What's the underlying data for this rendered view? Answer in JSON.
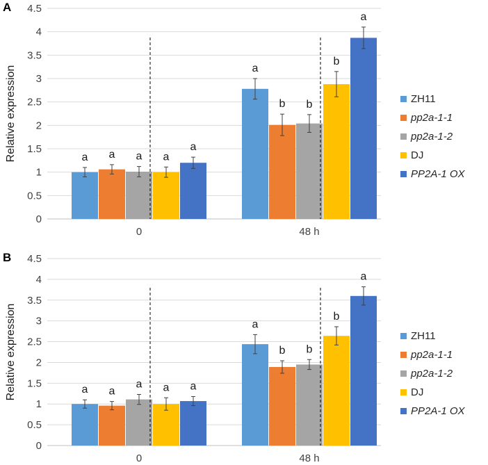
{
  "chart_data": [
    {
      "type": "bar",
      "panel_label": "A",
      "ylabel": "Relative expression",
      "ylim": [
        0,
        4.5
      ],
      "yticks": [
        "0",
        "0.5",
        "1",
        "1.5",
        "2",
        "2.5",
        "3",
        "3.5",
        "4",
        "4.5"
      ],
      "categories": [
        "0",
        "48 h"
      ],
      "series": [
        {
          "name": "ZH11",
          "color": "#5b9bd5",
          "italic": false,
          "values": [
            1.0,
            2.78
          ],
          "errors": [
            0.1,
            0.22
          ],
          "labels": [
            "a",
            "a"
          ]
        },
        {
          "name": "pp2a-1-1",
          "color": "#ed7d31",
          "italic": true,
          "values": [
            1.06,
            2.01
          ],
          "errors": [
            0.1,
            0.23
          ],
          "labels": [
            "a",
            "b"
          ]
        },
        {
          "name": "pp2a-1-2",
          "color": "#a5a5a5",
          "italic": true,
          "values": [
            1.01,
            2.04
          ],
          "errors": [
            0.11,
            0.19
          ],
          "labels": [
            "a",
            "b"
          ]
        },
        {
          "name": "DJ",
          "color": "#ffc000",
          "italic": false,
          "values": [
            1.0,
            2.88
          ],
          "errors": [
            0.11,
            0.27
          ],
          "labels": [
            "a",
            "b"
          ]
        },
        {
          "name": "PP2A-1 OX",
          "color": "#4472c4",
          "italic": true,
          "values": [
            1.2,
            3.87
          ],
          "errors": [
            0.12,
            0.23
          ],
          "labels": [
            "a",
            "a"
          ]
        }
      ]
    },
    {
      "type": "bar",
      "panel_label": "B",
      "ylabel": "Relative expression",
      "ylim": [
        0,
        4.5
      ],
      "yticks": [
        "0",
        "0.5",
        "1",
        "1.5",
        "2",
        "2.5",
        "3",
        "3.5",
        "4",
        "4.5"
      ],
      "categories": [
        "0",
        "48 h"
      ],
      "series": [
        {
          "name": "ZH11",
          "color": "#5b9bd5",
          "italic": false,
          "values": [
            1.0,
            2.44
          ],
          "errors": [
            0.1,
            0.23
          ],
          "labels": [
            "a",
            "a"
          ]
        },
        {
          "name": "pp2a-1-1",
          "color": "#ed7d31",
          "italic": true,
          "values": [
            0.96,
            1.89
          ],
          "errors": [
            0.1,
            0.15
          ],
          "labels": [
            "a",
            "b"
          ]
        },
        {
          "name": "pp2a-1-2",
          "color": "#a5a5a5",
          "italic": true,
          "values": [
            1.11,
            1.95
          ],
          "errors": [
            0.12,
            0.12
          ],
          "labels": [
            "a",
            "b"
          ]
        },
        {
          "name": "DJ",
          "color": "#ffc000",
          "italic": false,
          "values": [
            1.0,
            2.64
          ],
          "errors": [
            0.15,
            0.22
          ],
          "labels": [
            "a",
            "b"
          ]
        },
        {
          "name": "PP2A-1 OX",
          "color": "#4472c4",
          "italic": true,
          "values": [
            1.07,
            3.6
          ],
          "errors": [
            0.11,
            0.22
          ],
          "labels": [
            "a",
            "a"
          ]
        }
      ]
    }
  ]
}
